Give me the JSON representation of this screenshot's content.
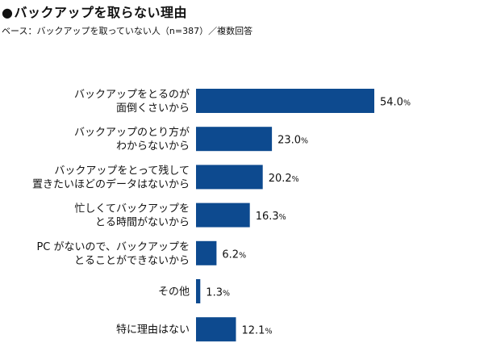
{
  "title": "バックアップを取らない理由",
  "subtitle": "ベース：バックアップを取っていない人（n=387）／複数回答",
  "colors": {
    "bar": "#0d4a8f"
  },
  "chart_data": {
    "type": "bar",
    "orientation": "horizontal",
    "unit": "%",
    "xlim": [
      0,
      54
    ],
    "grid": false,
    "categories": [
      [
        "バックアップをとるのが",
        "面倒くさいから"
      ],
      [
        "バックアップのとり方が",
        "わからないから"
      ],
      [
        "バックアップをとって残して",
        "置きたいほどのデータはないから"
      ],
      [
        "忙しくてバックアップを",
        "とる時間がないから"
      ],
      [
        "PC がないので、バックアップを",
        "とることができないから"
      ],
      [
        "その他"
      ],
      [
        "特に理由はない"
      ]
    ],
    "values": [
      54.0,
      23.0,
      20.2,
      16.3,
      6.2,
      1.3,
      12.1
    ],
    "value_labels": [
      "54.0",
      "23.0",
      "20.2",
      "16.3",
      "6.2",
      "1.3",
      "12.1"
    ]
  }
}
